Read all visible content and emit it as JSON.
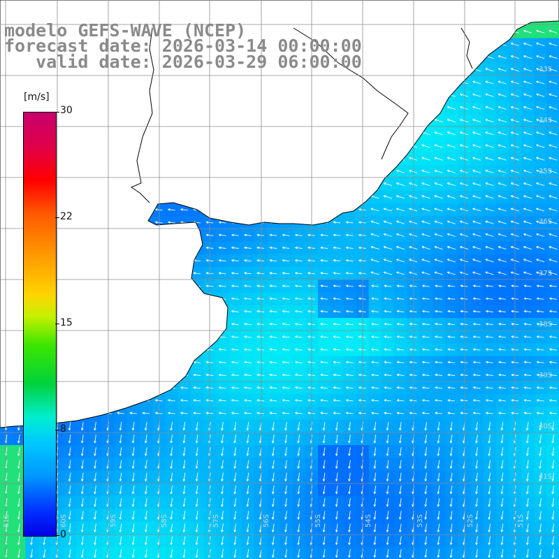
{
  "title": {
    "line1": "modelo GEFS-WAVE (NCEP)",
    "line2": "forecast date: 2026-03-14 00:00:00",
    "line3": "   valid date: 2026-03-29 06:00:00"
  },
  "colorbar": {
    "unit": "[m/s]",
    "ticks": [
      "30",
      "22",
      "15",
      "8",
      "0"
    ],
    "tick_values": [
      30,
      22,
      15,
      8,
      0
    ],
    "range": [
      0,
      30
    ]
  },
  "map": {
    "lon_labels": [
      "61S",
      "60S",
      "59S",
      "58S",
      "57S",
      "56S",
      "55S",
      "54S",
      "53S",
      "52S",
      "51S"
    ],
    "lat_labels": [
      "33S",
      "34S",
      "35S",
      "36S",
      "37S",
      "38S",
      "39S",
      "40S",
      "41S"
    ],
    "land_color": "#ffffff",
    "coast_color": "#000000",
    "grid_color": "#8c8c8c",
    "arrow_color": "#ffffff"
  }
}
